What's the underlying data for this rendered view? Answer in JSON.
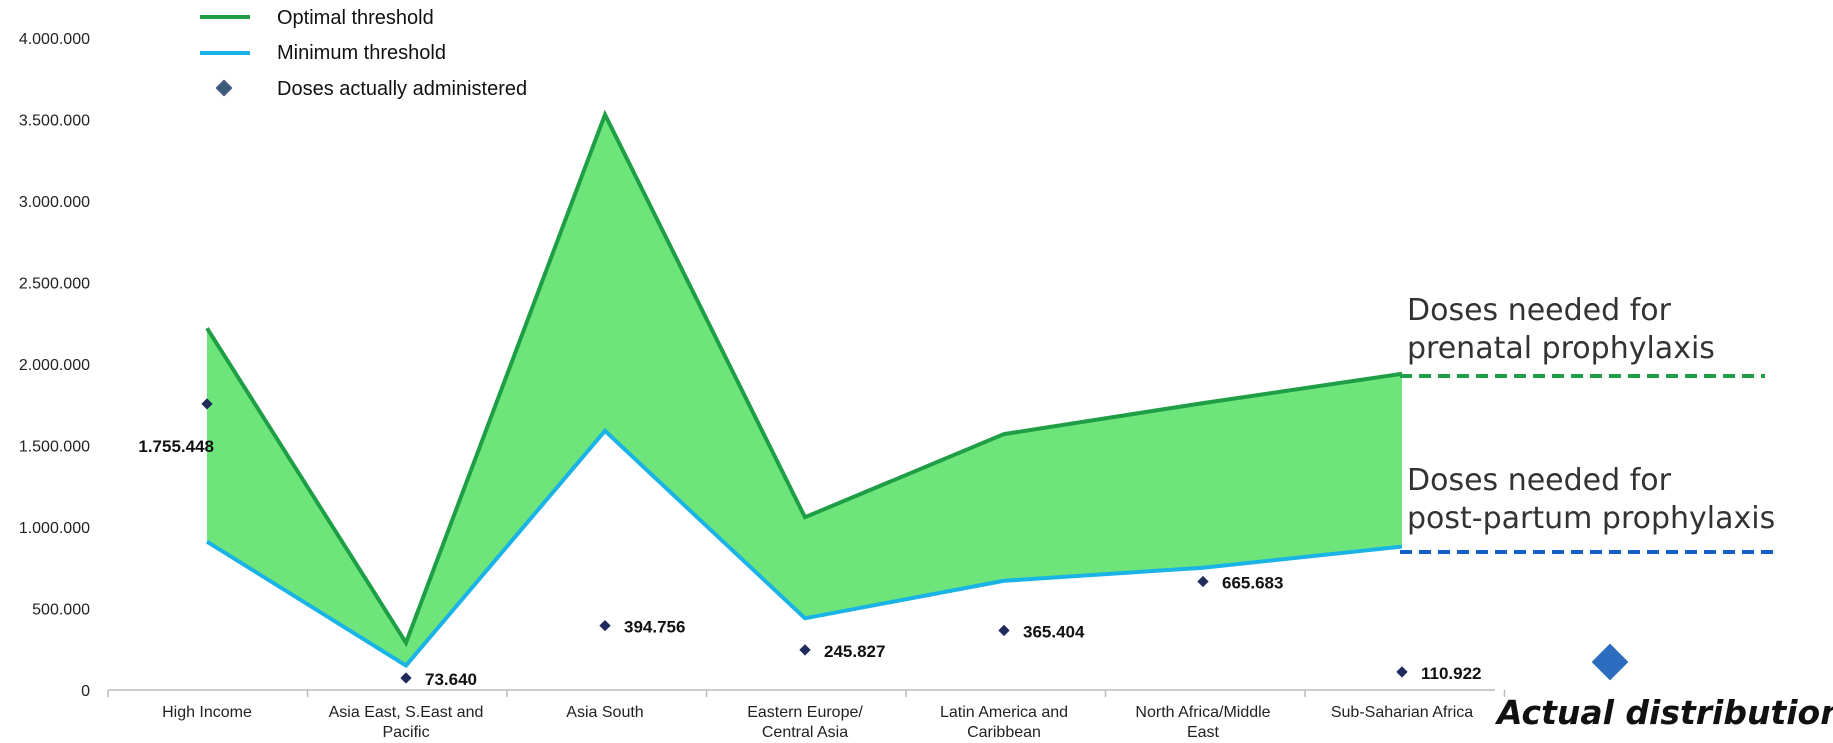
{
  "chart_data": {
    "type": "area",
    "categories": [
      [
        "High Income"
      ],
      [
        "Asia East, S.East and",
        "Pacific"
      ],
      [
        "Asia South"
      ],
      [
        "Eastern Europe/",
        "Central Asia"
      ],
      [
        "Latin America and",
        "Caribbean"
      ],
      [
        "North Africa/Middle",
        "East"
      ],
      [
        "Sub-Saharian Africa"
      ]
    ],
    "series": [
      {
        "name": "Optimal threshold",
        "type": "line",
        "color": "#1e9e45",
        "values": [
          2220000,
          290000,
          3530000,
          1060000,
          1570000,
          1760000,
          1940000
        ]
      },
      {
        "name": "Minimum threshold",
        "type": "line",
        "color": "#1ab3e6",
        "values": [
          910000,
          150000,
          1590000,
          440000,
          670000,
          750000,
          880000
        ]
      },
      {
        "name": "Doses actually administered",
        "type": "scatter",
        "color": "#1f2b5c",
        "values": [
          1755448,
          73640,
          394756,
          245827,
          365404,
          665683,
          110922
        ]
      }
    ],
    "data_labels": [
      "1.755.448",
      "73.640",
      "394.756",
      "245.827",
      "365.404",
      "665.683",
      "110.922"
    ],
    "fill_between_color": "#6ee57a",
    "yticks": [
      "0",
      "500.000",
      "1.000.000",
      "1.500.000",
      "2.000.000",
      "2.500.000",
      "3.000.000",
      "3.500.000",
      "4.000.000"
    ],
    "ylim": [
      0,
      4000000
    ],
    "title": "",
    "xlabel": "",
    "ylabel": "",
    "legend_position": "top-left"
  },
  "annotations": {
    "prenatal": [
      "Doses needed for",
      "prenatal prophylaxis"
    ],
    "postpartum": [
      "Doses needed for",
      "post-partum prophylaxis"
    ],
    "actual_distribution": "Actual distribution",
    "prenatal_color": "#1e9e45",
    "postpartum_color": "#1560c8",
    "diamond_color": "#2d6dbf"
  }
}
